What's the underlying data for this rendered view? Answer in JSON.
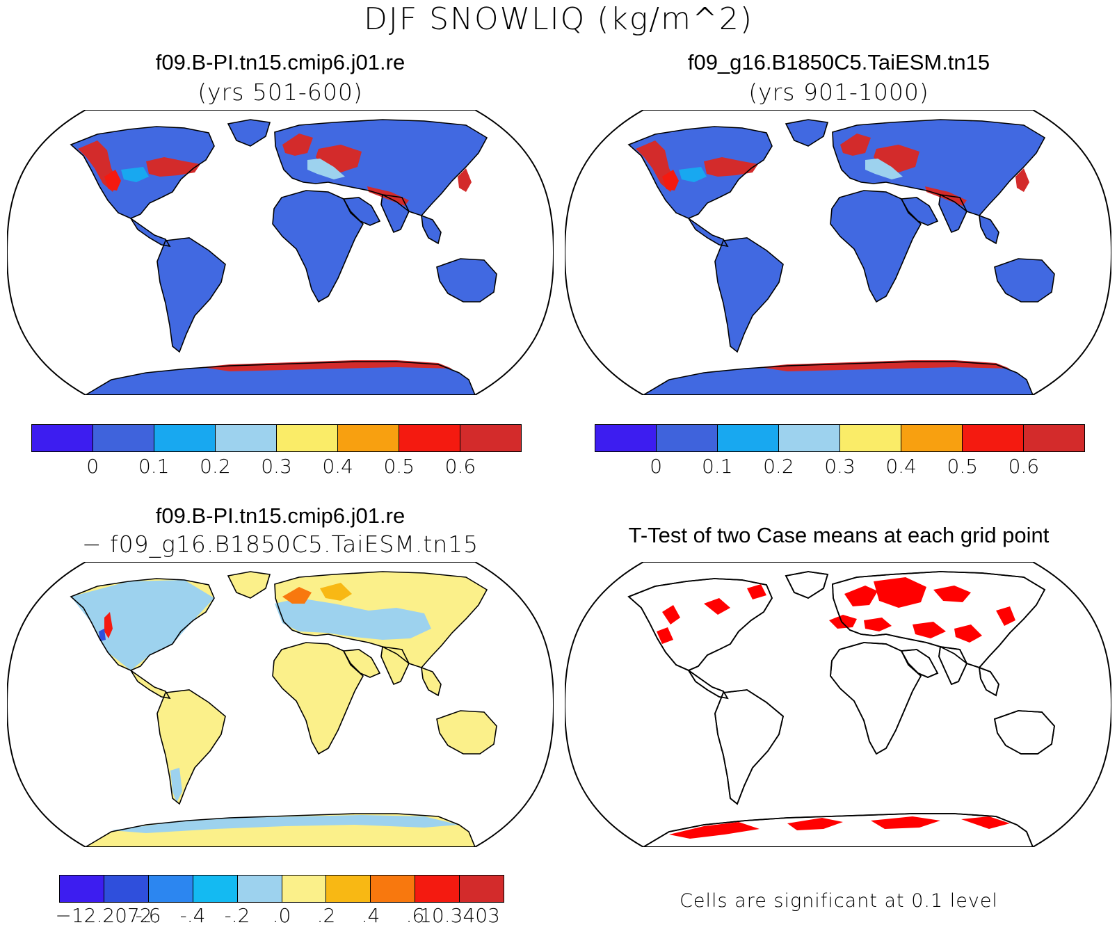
{
  "figure": {
    "title": "DJF SNOWLIQ (kg/m^2)"
  },
  "panels": {
    "p1": {
      "title": "f09.B-PI.tn15.cmip6.j01.re",
      "subtitle": "(yrs 501-600)"
    },
    "p2": {
      "title": "f09_g16.B1850C5.TaiESM.tn15",
      "subtitle": "(yrs 901-1000)"
    },
    "p3": {
      "title": "f09.B-PI.tn15.cmip6.j01.re",
      "subtitle": "− f09_g16.B1850C5.TaiESM.tn15"
    },
    "p4": {
      "title": "T-Test of two Case means at each grid point",
      "note": "Cells are significant at 0.1 level"
    }
  },
  "colorbars": {
    "abs": {
      "colors": [
        "#3d1df0",
        "#3f63dc",
        "#18a8f0",
        "#9dd2ee",
        "#faec68",
        "#f8a010",
        "#f41a10",
        "#d32b2b"
      ],
      "labels": [
        "0",
        "0.1",
        "0.2",
        "0.3",
        "0.4",
        "0.5",
        "0.6"
      ]
    },
    "diff": {
      "colors": [
        "#3d1df0",
        "#2f4fdc",
        "#2c86f0",
        "#14baf2",
        "#9dd2ee",
        "#fbf08a",
        "#f8b814",
        "#f8780e",
        "#f41a10",
        "#d32b2b"
      ],
      "labels": [
        "−12.2072",
        "-.6",
        "-.4",
        "-.2",
        ".0",
        ".2",
        ".4",
        ".6",
        "10.3403"
      ]
    }
  },
  "colors": {
    "land_base": "#4169e1",
    "land_diff": "#fbf08a",
    "signif": "#ff0000",
    "frame": "#000000"
  }
}
